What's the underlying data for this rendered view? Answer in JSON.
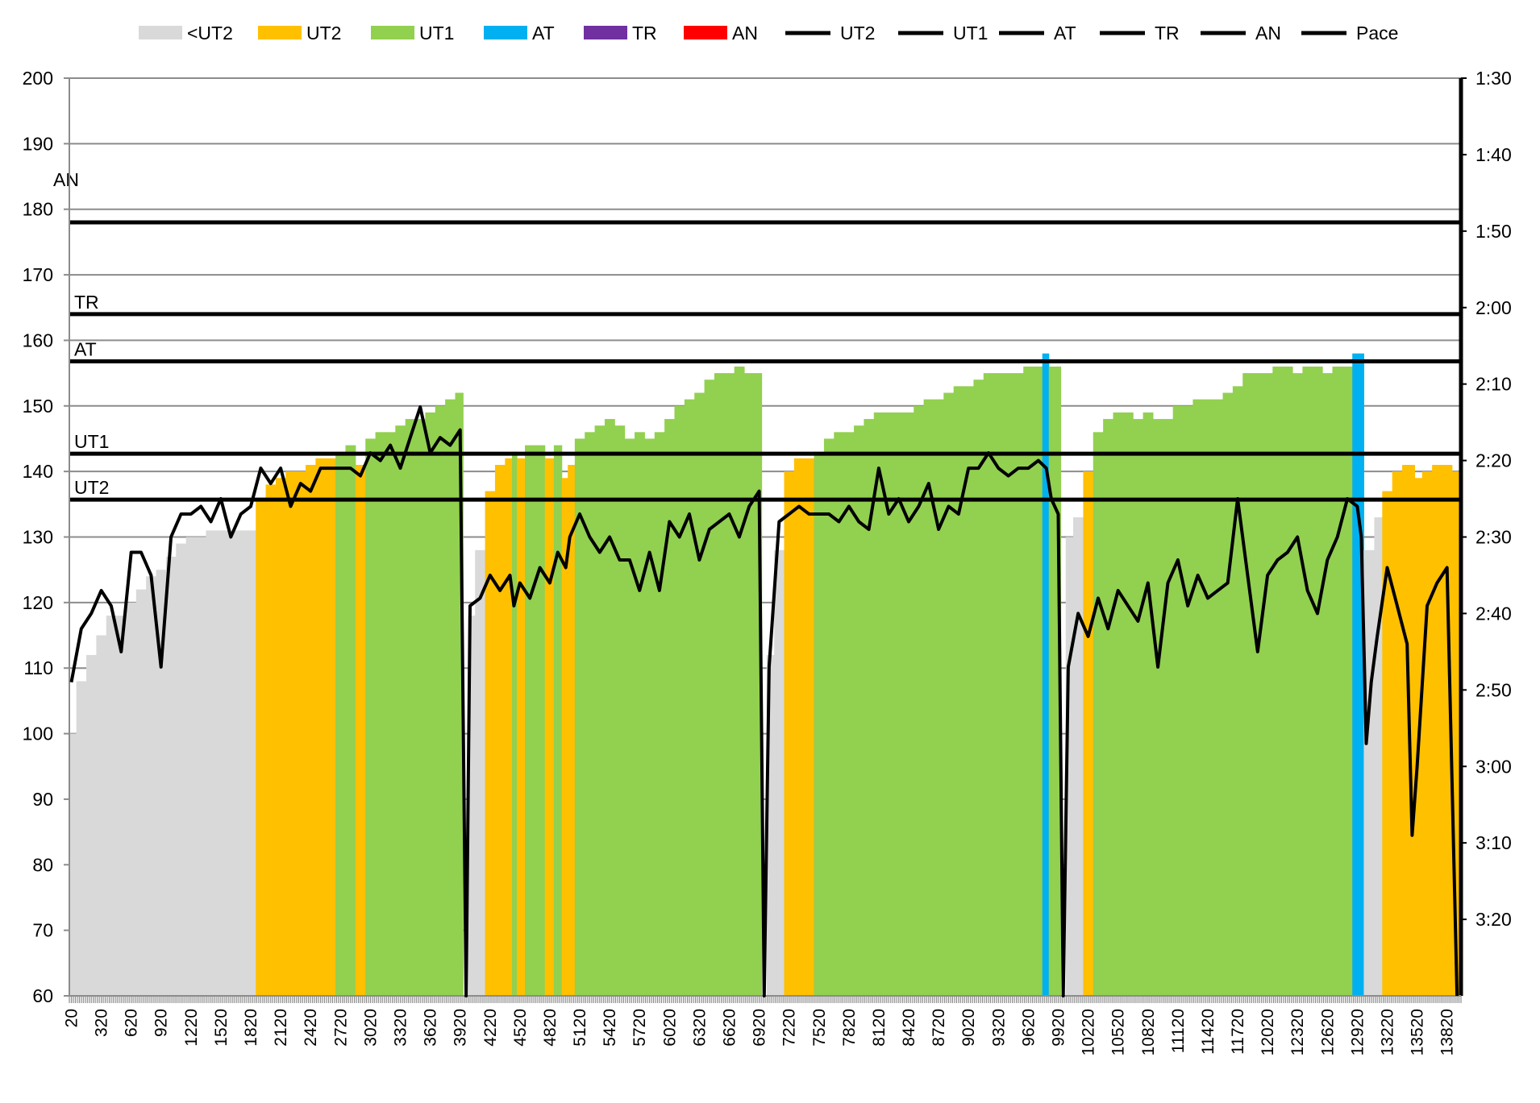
{
  "chart_data": {
    "type": "bar+line",
    "title": "",
    "legend_position": "top",
    "legend": {
      "bars": [
        {
          "label": "<UT2",
          "color": "#d9d9d9"
        },
        {
          "label": "UT2",
          "color": "#ffc000"
        },
        {
          "label": "UT1",
          "color": "#92d050"
        },
        {
          "label": "AT",
          "color": "#00b0f0"
        },
        {
          "label": "TR",
          "color": "#7030a0"
        },
        {
          "label": "AN",
          "color": "#ff0000"
        }
      ],
      "lines": [
        "UT2",
        "UT1",
        "AT",
        "TR",
        "AN",
        "Pace"
      ]
    },
    "y_left": {
      "min": 60,
      "max": 200,
      "step": 10,
      "ticks": [
        "60",
        "70",
        "80",
        "90",
        "100",
        "110",
        "120",
        "130",
        "140",
        "150",
        "160",
        "170",
        "180",
        "190",
        "200"
      ]
    },
    "y_right": {
      "min_sec": 90,
      "max_sec": 210,
      "reversed": true,
      "ticks": [
        "1:30",
        "1:40",
        "1:50",
        "2:00",
        "2:10",
        "2:20",
        "2:30",
        "2:40",
        "2:50",
        "3:00",
        "3:10",
        "3:20"
      ]
    },
    "x": {
      "min": 0,
      "max": 13960,
      "minor_step": 20,
      "ticks": [
        "20",
        "320",
        "620",
        "920",
        "1220",
        "1520",
        "1820",
        "2120",
        "2420",
        "2720",
        "3020",
        "3320",
        "3620",
        "3920",
        "4220",
        "4520",
        "4820",
        "5120",
        "5420",
        "5720",
        "6020",
        "6320",
        "6620",
        "6920",
        "7220",
        "7520",
        "7820",
        "8120",
        "8420",
        "8720",
        "9020",
        "9320",
        "9620",
        "9920",
        "10220",
        "10520",
        "10820",
        "11120",
        "11420",
        "11720",
        "12020",
        "12320",
        "12620",
        "12920",
        "13220",
        "13520",
        "13820"
      ]
    },
    "zones": [
      {
        "name": "UT2",
        "hr": 135.7
      },
      {
        "name": "UT1",
        "hr": 142.7
      },
      {
        "name": "AT",
        "hr": 156.8
      },
      {
        "name": "TR",
        "hr": 164
      },
      {
        "name": "AN",
        "hr": 178
      }
    ],
    "grid": true,
    "points": [
      [
        20,
        100,
        169
      ],
      [
        120,
        108,
        162
      ],
      [
        220,
        112,
        160
      ],
      [
        320,
        115,
        157
      ],
      [
        420,
        118,
        159
      ],
      [
        520,
        118,
        165
      ],
      [
        620,
        120,
        152
      ],
      [
        720,
        122,
        152
      ],
      [
        820,
        124,
        155
      ],
      [
        920,
        125,
        167
      ],
      [
        1020,
        127,
        150
      ],
      [
        1120,
        129,
        147
      ],
      [
        1220,
        130,
        147
      ],
      [
        1320,
        130,
        146
      ],
      [
        1420,
        131,
        148
      ],
      [
        1520,
        131,
        145
      ],
      [
        1620,
        131,
        150
      ],
      [
        1720,
        131,
        147
      ],
      [
        1820,
        131,
        146
      ],
      [
        1920,
        136,
        141
      ],
      [
        2020,
        138,
        143
      ],
      [
        2120,
        139,
        141
      ],
      [
        2220,
        140,
        146
      ],
      [
        2320,
        140,
        143
      ],
      [
        2420,
        141,
        144
      ],
      [
        2520,
        142,
        141
      ],
      [
        2620,
        142,
        141
      ],
      [
        2720,
        143,
        141
      ],
      [
        2820,
        144,
        141
      ],
      [
        2920,
        141,
        142
      ],
      [
        3020,
        145,
        139
      ],
      [
        3120,
        146,
        140
      ],
      [
        3220,
        146,
        138
      ],
      [
        3320,
        147,
        141
      ],
      [
        3420,
        148,
        137
      ],
      [
        3520,
        148,
        133
      ],
      [
        3620,
        149,
        139
      ],
      [
        3720,
        150,
        137
      ],
      [
        3820,
        151,
        138
      ],
      [
        3920,
        152,
        136
      ],
      [
        3980,
        60,
        210
      ],
      [
        4020,
        118,
        159
      ],
      [
        4120,
        128,
        158
      ],
      [
        4220,
        137,
        155
      ],
      [
        4320,
        141,
        157
      ],
      [
        4420,
        142,
        155
      ],
      [
        4460,
        143,
        159
      ],
      [
        4520,
        142,
        156
      ],
      [
        4620,
        144,
        158
      ],
      [
        4720,
        144,
        154
      ],
      [
        4820,
        142,
        156
      ],
      [
        4900,
        144,
        152
      ],
      [
        4980,
        139,
        154
      ],
      [
        5020,
        141,
        150
      ],
      [
        5120,
        145,
        147
      ],
      [
        5220,
        146,
        150
      ],
      [
        5320,
        147,
        152
      ],
      [
        5420,
        148,
        150
      ],
      [
        5520,
        147,
        153
      ],
      [
        5620,
        145,
        153
      ],
      [
        5720,
        146,
        157
      ],
      [
        5820,
        145,
        152
      ],
      [
        5920,
        146,
        157
      ],
      [
        6020,
        148,
        148
      ],
      [
        6120,
        150,
        150
      ],
      [
        6220,
        151,
        147
      ],
      [
        6320,
        152,
        153
      ],
      [
        6420,
        154,
        149
      ],
      [
        6520,
        155,
        148
      ],
      [
        6620,
        155,
        147
      ],
      [
        6720,
        156,
        150
      ],
      [
        6820,
        155,
        146
      ],
      [
        6920,
        155,
        144
      ],
      [
        6970,
        60,
        210
      ],
      [
        7020,
        112,
        167
      ],
      [
        7120,
        128,
        148
      ],
      [
        7220,
        140,
        147
      ],
      [
        7320,
        142,
        146
      ],
      [
        7420,
        142,
        147
      ],
      [
        7520,
        143,
        147
      ],
      [
        7620,
        145,
        147
      ],
      [
        7720,
        146,
        148
      ],
      [
        7820,
        146,
        146
      ],
      [
        7920,
        147,
        148
      ],
      [
        8020,
        148,
        149
      ],
      [
        8120,
        149,
        141
      ],
      [
        8220,
        149,
        147
      ],
      [
        8320,
        149,
        145
      ],
      [
        8420,
        149,
        148
      ],
      [
        8520,
        150,
        146
      ],
      [
        8620,
        151,
        143
      ],
      [
        8720,
        151,
        149
      ],
      [
        8820,
        152,
        146
      ],
      [
        8920,
        153,
        147
      ],
      [
        9020,
        153,
        141
      ],
      [
        9120,
        154,
        141
      ],
      [
        9220,
        155,
        139
      ],
      [
        9320,
        155,
        141
      ],
      [
        9420,
        155,
        142
      ],
      [
        9520,
        155,
        141
      ],
      [
        9620,
        156,
        141
      ],
      [
        9720,
        156,
        140
      ],
      [
        9800,
        158,
        141
      ],
      [
        9850,
        156,
        145
      ],
      [
        9920,
        156,
        147
      ],
      [
        9970,
        60,
        210
      ],
      [
        10020,
        130,
        167
      ],
      [
        10120,
        133,
        160
      ],
      [
        10220,
        140,
        163
      ],
      [
        10320,
        146,
        158
      ],
      [
        10420,
        148,
        162
      ],
      [
        10520,
        149,
        157
      ],
      [
        10620,
        149,
        159
      ],
      [
        10720,
        148,
        161
      ],
      [
        10820,
        149,
        156
      ],
      [
        10920,
        148,
        167
      ],
      [
        11020,
        148,
        156
      ],
      [
        11120,
        150,
        153
      ],
      [
        11220,
        150,
        159
      ],
      [
        11320,
        151,
        155
      ],
      [
        11420,
        151,
        158
      ],
      [
        11520,
        151,
        157
      ],
      [
        11620,
        152,
        156
      ],
      [
        11720,
        153,
        145
      ],
      [
        11820,
        155,
        155
      ],
      [
        11920,
        155,
        165
      ],
      [
        12020,
        155,
        155
      ],
      [
        12120,
        156,
        153
      ],
      [
        12220,
        156,
        152
      ],
      [
        12320,
        155,
        150
      ],
      [
        12420,
        156,
        157
      ],
      [
        12520,
        156,
        160
      ],
      [
        12620,
        155,
        153
      ],
      [
        12720,
        156,
        150
      ],
      [
        12820,
        156,
        145
      ],
      [
        12920,
        158,
        146
      ],
      [
        12960,
        158,
        150
      ],
      [
        13010,
        128,
        177
      ],
      [
        13060,
        128,
        169
      ],
      [
        13120,
        133,
        163
      ],
      [
        13220,
        137,
        154
      ],
      [
        13320,
        140,
        159
      ],
      [
        13420,
        141,
        164
      ],
      [
        13470,
        141,
        189
      ],
      [
        13520,
        139,
        180
      ],
      [
        13620,
        140,
        159
      ],
      [
        13720,
        141,
        156
      ],
      [
        13820,
        141,
        154
      ],
      [
        13920,
        140,
        210
      ]
    ],
    "points_format": [
      "distance",
      "heart_rate_bpm",
      "pace_seconds_per_500m"
    ]
  }
}
